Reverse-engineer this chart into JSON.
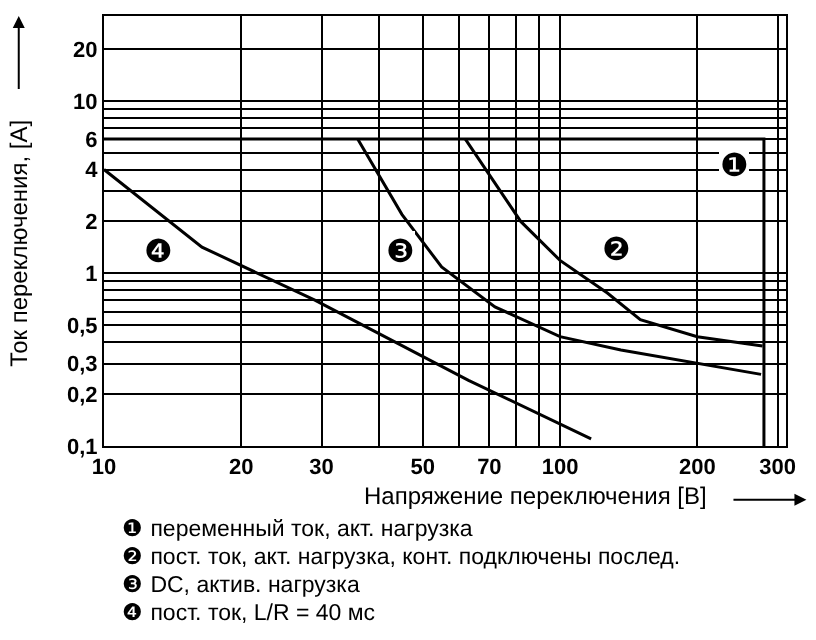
{
  "chart_data": {
    "type": "line",
    "xlabel": "Напряжение переключения [В]",
    "ylabel": "Ток переключения, [A]",
    "log": "xy",
    "grid": true,
    "marker": "none",
    "line_style": "solid",
    "xlim": [
      10,
      313
    ],
    "ylim": [
      0.1,
      31
    ],
    "xticks": [
      10,
      20,
      30,
      {
        "value": 40,
        "label": null
      },
      50,
      {
        "value": 60,
        "label": null
      },
      70,
      {
        "value": 80,
        "label": null
      },
      {
        "value": 90,
        "label": null
      },
      100,
      200,
      300
    ],
    "yticks": [
      {
        "value": 0.1,
        "label": "0,1"
      },
      {
        "value": 0.2,
        "label": "0,2"
      },
      {
        "value": 0.3,
        "label": "0,3"
      },
      {
        "value": 0.4,
        "label": null
      },
      {
        "value": 0.5,
        "label": "0,5"
      },
      {
        "value": 0.6,
        "label": null
      },
      {
        "value": 0.7,
        "label": null
      },
      {
        "value": 0.8,
        "label": null
      },
      {
        "value": 0.9,
        "label": null
      },
      1,
      2,
      {
        "value": 3,
        "label": null
      },
      4,
      {
        "value": 5,
        "label": null
      },
      6,
      {
        "value": 7,
        "label": null
      },
      {
        "value": 8,
        "label": null
      },
      {
        "value": 9,
        "label": null
      },
      10,
      20
    ],
    "series": [
      {
        "name": "❶",
        "color": "#000000",
        "x": [
          10,
          280,
          280
        ],
        "values": [
          6,
          6,
          0.1
        ]
      },
      {
        "name": "❷",
        "color": "#000000",
        "x": [
          62,
          82,
          100,
          127,
          150,
          200,
          278
        ],
        "values": [
          6,
          2.0,
          1.19,
          0.77,
          0.54,
          0.43,
          0.38
        ]
      },
      {
        "name": "❸",
        "color": "#000000",
        "x": [
          36,
          45,
          55,
          72,
          100,
          136,
          276
        ],
        "values": [
          6,
          2.2,
          1.09,
          0.64,
          0.43,
          0.36,
          0.26
        ]
      },
      {
        "name": "❹",
        "color": "#000000",
        "x": [
          10,
          16.4,
          29,
          63,
          117
        ],
        "values": [
          4,
          1.42,
          0.7,
          0.24,
          0.11
        ]
      }
    ],
    "annotations": [
      "❶ переменный ток, акт. нагрузка",
      "❷ пост. ток, акт. нагрузка, конт. подключены послед.",
      "❸ DC, актив. нагрузка",
      "❹ пост. ток, L/R = 40 мс"
    ]
  }
}
